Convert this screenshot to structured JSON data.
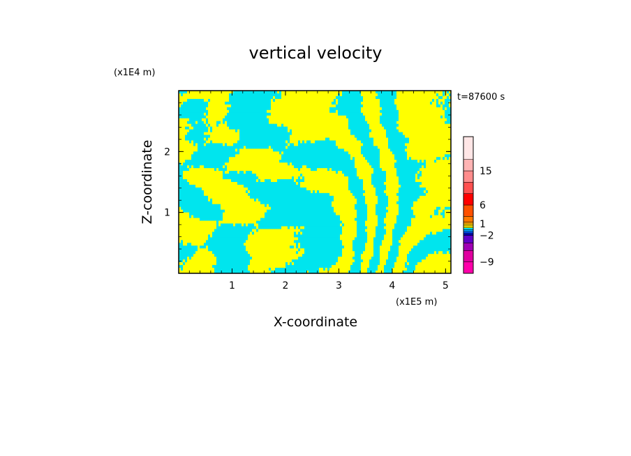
{
  "chart_data": {
    "type": "heatmap",
    "title": "vertical velocity",
    "xlabel": "X-coordinate",
    "ylabel": "Z-coordinate",
    "x_scale_label": "(x1E5 m)",
    "y_scale_label": "(x1E4 m)",
    "time_label": "t=87600 s",
    "xlim": [
      0,
      5.1
    ],
    "ylim": [
      0,
      3.0
    ],
    "x_ticks": [
      1,
      2,
      3,
      4,
      5
    ],
    "y_ticks": [
      1,
      2
    ],
    "x_tick_labels": [
      "1",
      "2",
      "3",
      "4",
      "5"
    ],
    "y_tick_labels": [
      "1",
      "2"
    ],
    "field_colors": {
      "positive": "#ffff00",
      "negative": "#00e5ee"
    },
    "colorbar": {
      "range": [
        -12,
        24
      ],
      "bins": [
        {
          "from": -12,
          "to": -9,
          "color": "#ff00aa"
        },
        {
          "from": -9,
          "to": -6,
          "color": "#e0009f"
        },
        {
          "from": -6,
          "to": -4,
          "color": "#a000b4"
        },
        {
          "from": -4,
          "to": -2,
          "color": "#6000c8"
        },
        {
          "from": -2,
          "to": -1.5,
          "color": "#0000b4"
        },
        {
          "from": -1.5,
          "to": -1,
          "color": "#0050ff"
        },
        {
          "from": -1,
          "to": -0.5,
          "color": "#00a0ff"
        },
        {
          "from": -0.5,
          "to": 0,
          "color": "#00e5ee"
        },
        {
          "from": 0,
          "to": 0.5,
          "color": "#ffff00"
        },
        {
          "from": 0.5,
          "to": 1,
          "color": "#ffd700"
        },
        {
          "from": 1,
          "to": 1.5,
          "color": "#ffa000"
        },
        {
          "from": 1.5,
          "to": 3,
          "color": "#ff7800"
        },
        {
          "from": 3,
          "to": 6,
          "color": "#ff5000"
        },
        {
          "from": 6,
          "to": 9,
          "color": "#ff0000"
        },
        {
          "from": 9,
          "to": 12,
          "color": "#ff5050"
        },
        {
          "from": 12,
          "to": 15,
          "color": "#ff8c8c"
        },
        {
          "from": 15,
          "to": 18,
          "color": "#ffb4b4"
        },
        {
          "from": 18,
          "to": 24,
          "color": "#ffe6e6"
        }
      ],
      "labels": [
        {
          "value": 15,
          "text": "15"
        },
        {
          "value": 6,
          "text": "6"
        },
        {
          "value": 1,
          "text": "1"
        },
        {
          "value": -2,
          "text": "−2"
        },
        {
          "value": -9,
          "text": "−9"
        }
      ]
    }
  }
}
